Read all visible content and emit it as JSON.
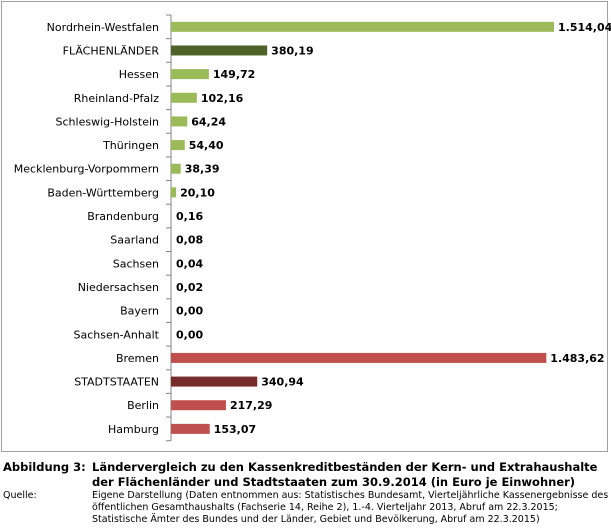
{
  "chart_data": {
    "type": "bar",
    "orientation": "horizontal",
    "title": "",
    "xlabel": "",
    "ylabel": "",
    "xlim": [
      0,
      1514.04
    ],
    "grid": false,
    "categories": [
      "Nordrhein-Westfalen",
      "FLÄCHENLÄNDER",
      "Hessen",
      "Rheinland-Pfalz",
      "Schleswig-Holstein",
      "Thüringen",
      "Mecklenburg-Vorpommern",
      "Baden-Württemberg",
      "Brandenburg",
      "Saarland",
      "Sachsen",
      "Niedersachsen",
      "Bayern",
      "Sachsen-Anhalt",
      "Bremen",
      "STADTSTAATEN",
      "Berlin",
      "Hamburg"
    ],
    "values": [
      1514.04,
      380.19,
      149.72,
      102.16,
      64.24,
      54.4,
      38.39,
      20.1,
      0.16,
      0.08,
      0.04,
      0.02,
      0.0,
      0.0,
      1483.62,
      340.94,
      217.29,
      153.07
    ],
    "labels": [
      "1.514,04",
      "380,19",
      "149,72",
      "102,16",
      "64,24",
      "54,40",
      "38,39",
      "20,10",
      "0,16",
      "0,08",
      "0,04",
      "0,02",
      "0,00",
      "0,00",
      "1.483,62",
      "340,94",
      "217,29",
      "153,07"
    ],
    "bar_colors": [
      "#9BBB59",
      "#4F6228",
      "#9BBB59",
      "#9BBB59",
      "#9BBB59",
      "#9BBB59",
      "#9BBB59",
      "#9BBB59",
      "#9BBB59",
      "#9BBB59",
      "#9BBB59",
      "#9BBB59",
      "#9BBB59",
      "#9BBB59",
      "#C0504D",
      "#772C2C",
      "#C0504D",
      "#C0504D"
    ]
  },
  "caption": {
    "label": "Abbildung 3:",
    "title": "Ländervergleich zu den Kassenkreditbeständen der Kern- und Extrahaushalte der Flächenländer und Stadtstaaten zum 30.9.2014 (in Euro je Einwohner)",
    "source_label": "Quelle:",
    "source": "Eigene Darstellung (Daten entnommen aus: Statistisches Bundesamt, Vierteljährliche Kassenergebnisse des öffentlichen Gesamthaushalts (Fachserie 14, Reihe 2), 1.-4. Vierteljahr 2013, Abruf am 22.3.2015; Statistische Ämter des Bundes und der Länder, Gebiet und Bevölkerung, Abruf am 22.3.2015)"
  }
}
